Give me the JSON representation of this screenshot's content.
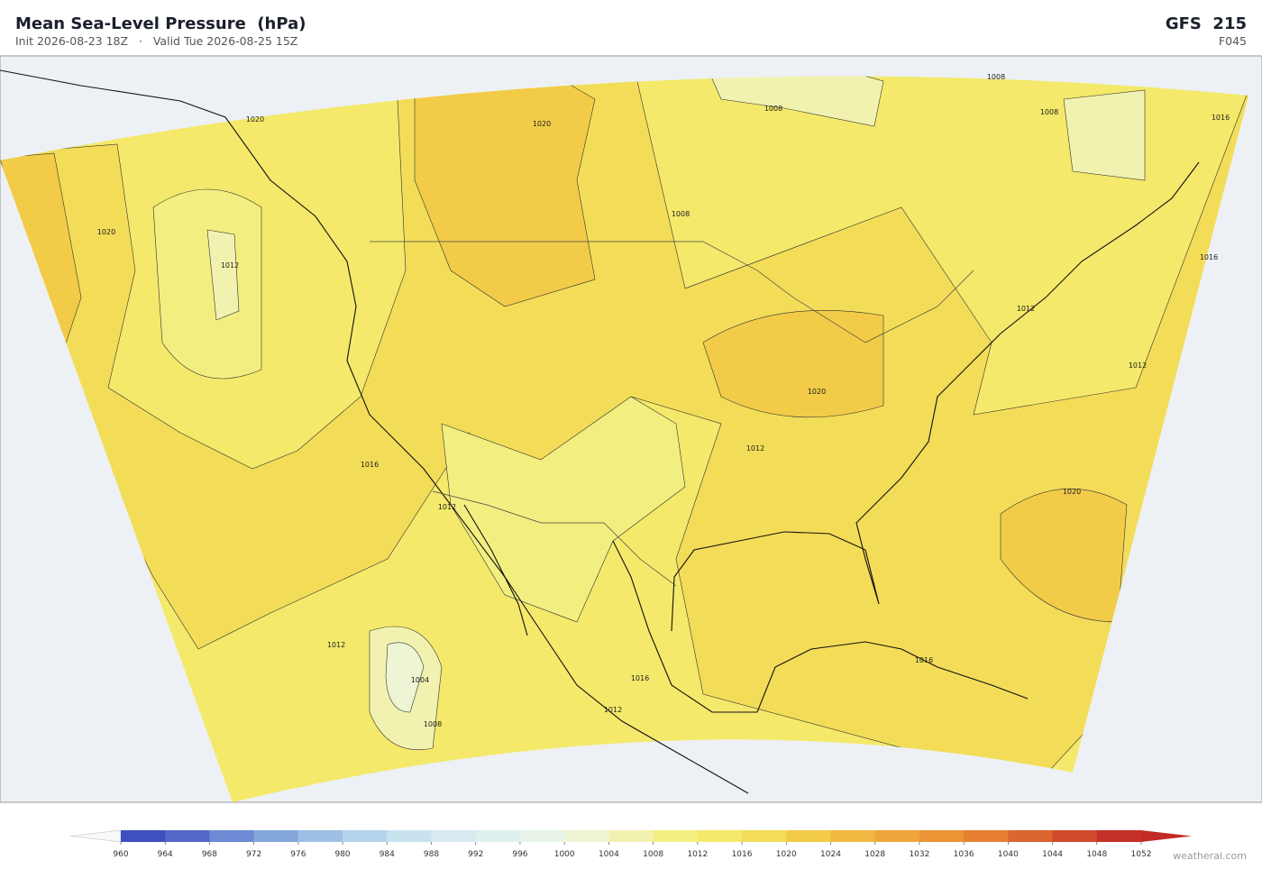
{
  "header": {
    "title": "Mean Sea-Level Pressure  (hPa)",
    "subtitle": "Init 2026-08-23 18Z   ·   Valid Tue 2026-08-25 15Z",
    "model": "GFS  215",
    "forecast_hour": "F045"
  },
  "contour_labels": [
    "1020",
    "1020",
    "1020",
    "1012",
    "1008",
    "1008",
    "1008",
    "1016",
    "1008",
    "1016",
    "1012",
    "1012",
    "1020",
    "1016",
    "1012",
    "1012",
    "1020",
    "1012",
    "1004",
    "1008",
    "1016",
    "1012",
    "1016"
  ],
  "colorbar": {
    "ticks": [
      960,
      964,
      968,
      972,
      976,
      980,
      984,
      988,
      992,
      996,
      1000,
      1004,
      1008,
      1012,
      1016,
      1020,
      1024,
      1028,
      1032,
      1036,
      1040,
      1044,
      1048,
      1052
    ],
    "colors": [
      "#3f4fc0",
      "#5468c8",
      "#6d8bd4",
      "#85a8dc",
      "#9dc0e4",
      "#b4d3ec",
      "#c8e2ef",
      "#d6eaf0",
      "#dff0ee",
      "#e7f3e6",
      "#eef5d4",
      "#f2f2b0",
      "#f3ee80",
      "#f4e96a",
      "#f3dd58",
      "#f2cc48",
      "#f0b840",
      "#eea63a",
      "#ec9436",
      "#e67f32",
      "#dc6630",
      "#d04b2c",
      "#c43028"
    ],
    "under_color": "#f6f8fa",
    "over_color": "#c22a25"
  },
  "footer": {
    "credit": "weatherai.com"
  }
}
